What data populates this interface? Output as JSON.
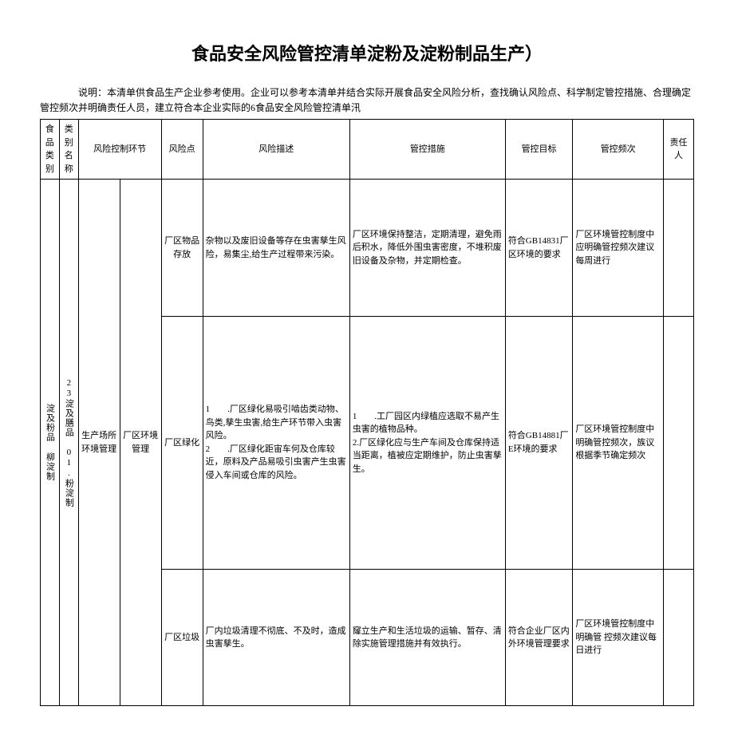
{
  "title": "食品安全风险管控清单淀粉及淀粉制品生产）",
  "intro": "说明：本清单供食品生产企业参考使用。企业可以参考本清单并结合实际开展食品安全风险分析，查找确认风险点、科学制定管控措施、合理确定管控频次并明确责任人员，建立符合本企业实际的6食品安全风险管控清单汛",
  "headers": {
    "category": "食品类别",
    "subname": "类别名称",
    "link": "风险控制环节",
    "point": "风险点",
    "desc": "风险描述",
    "measure": "管控措施",
    "goal": "管控目标",
    "freq": "管控频次",
    "resp": "责任人"
  },
  "category_main": "淀及粉品  柳淀制",
  "category_sub": "23淀及膳品  01.粉淀制",
  "link_group": "生产场所环境管理",
  "point_group": "厂区环境管理",
  "rows": [
    {
      "point": "厂区物品存放",
      "desc": "杂物以及废旧设备等存在虫害孳生风险，易集尘,给生产过程带来污染。",
      "measure": "厂区环境保持整洁，定期清理，避免雨后积水，降低外围虫害密度，不堆积废旧设备及杂物，并定期检查。",
      "goal": "符合GB14831厂区环境的要求",
      "freq": "厂区环境管控制度中应明确管控频次建议每周进行",
      "resp": ""
    },
    {
      "point": "厂区绿化",
      "desc": "1　　.厂区绿化易吸引啮齿类动物、鸟类,孳生虫害,给生产环节带入虫害风险。\n2　　.厂区绿化距宙车何及仓库较近，原料及产品易吸引虫害产生虫害侵入车间或仓库的风险。",
      "measure": "1　　.工厂园区内绿植应选取不易产生虫害的植物品种。\n2.厂区绿化应与生产车间及仓库保持适当距离，植被应定期维护，防止虫害孳生。",
      "goal": "符合GB14881厂E环境的要求",
      "freq": "厂区环境管控制度中明确管控频次，族议根据季节确定频次",
      "resp": ""
    },
    {
      "point": "厂区垃圾",
      "desc": "厂内垃圾清理不彻底、不及时，造成虫害孳生。",
      "measure": "窿立生产和生活垃圾的运输、暂存、清除实施管理措施并有效执行。",
      "goal": "符合企业厂区内外环境管理要求",
      "freq": "厂区环境管控制度中明确管 控频次建议每日进行",
      "resp": ""
    }
  ]
}
